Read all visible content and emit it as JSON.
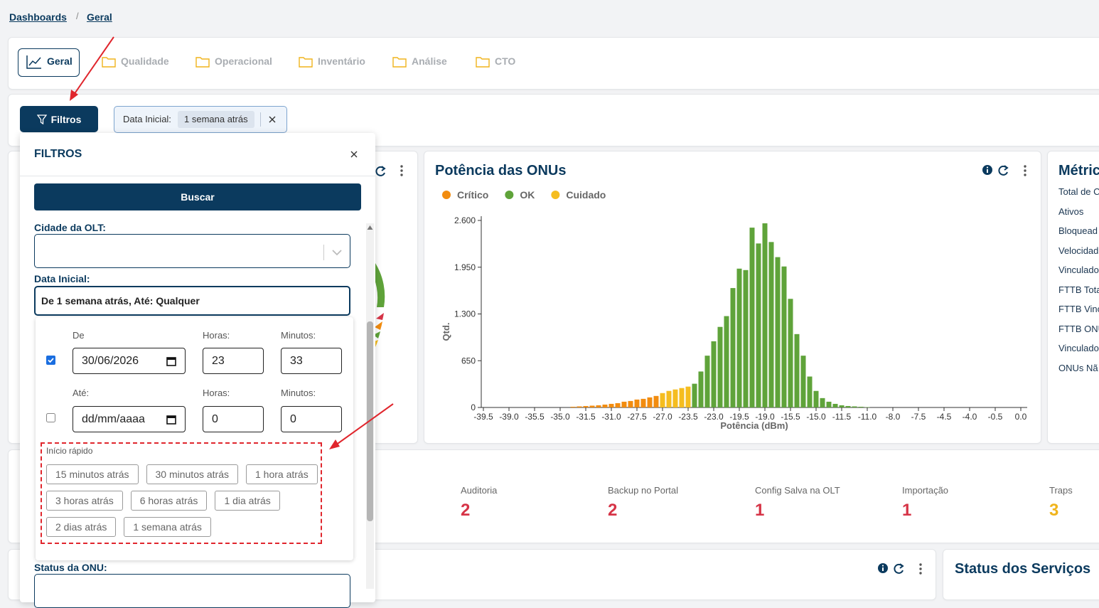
{
  "breadcrumb": {
    "items": [
      "Dashboards",
      "Geral"
    ],
    "separator": "/"
  },
  "tabs": [
    "Geral",
    "Qualidade",
    "Operacional",
    "Inventário",
    "Análise",
    "CTO"
  ],
  "filter_button": "Filtros",
  "active_filter": {
    "label": "Data Inicial:",
    "value": "1 semana atrás"
  },
  "filter_panel": {
    "title": "FILTROS",
    "search_button": "Buscar",
    "city_label": "Cidade da OLT:",
    "start_date_label": "Data Inicial:",
    "start_date_value": "De 1 semana atrás, Até: Qualquer",
    "picker": {
      "from": {
        "label": "De",
        "date": "30/06/2026",
        "hours_label": "Horas:",
        "hours": "23",
        "minutes_label": "Minutos:",
        "minutes": "33"
      },
      "to": {
        "label": "Até:",
        "date": "dd/mm/aaaa",
        "hours_label": "Horas:",
        "hours": "0",
        "minutes_label": "Minutos:",
        "minutes": "0"
      },
      "quick_start_title": "Início rápido",
      "quick_start": [
        "15 minutos atrás",
        "30 minutos atrás",
        "1 hora atrás",
        "3 horas atrás",
        "6 horas atrás",
        "1 dia atrás",
        "2 dias atrás",
        "1 semana atrás"
      ]
    },
    "status_label": "Status da ONU:"
  },
  "chart_data": {
    "type": "bar",
    "title": "Potência das ONUs",
    "xlabel": "Potência (dBm)",
    "ylabel": "Qtd.",
    "ylim": [
      0,
      2600
    ],
    "yticks": [
      0,
      650,
      {
        "value": 1300,
        "label": "1.300"
      },
      {
        "value": 1950,
        "label": "1.950"
      },
      {
        "value": 2600,
        "label": "2.600"
      }
    ],
    "categories": [
      "-39.5",
      null,
      null,
      null,
      "-39.0",
      null,
      null,
      null,
      "-35.5",
      null,
      null,
      null,
      "-35.0",
      null,
      null,
      null,
      "-31.5",
      null,
      null,
      null,
      "-31.0",
      null,
      null,
      null,
      "-27.5",
      null,
      null,
      null,
      "-27.0",
      null,
      null,
      null,
      "-23.5",
      null,
      null,
      null,
      "-23.0",
      null,
      null,
      null,
      "-19.5",
      null,
      null,
      null,
      "-19.0",
      null,
      null,
      null,
      "-15.5",
      null,
      null,
      null,
      "-15.0",
      null,
      null,
      null,
      "-11.5",
      null,
      null,
      null,
      "-11.0",
      null,
      null,
      null,
      "-8.0",
      null,
      null,
      null,
      "-7.5",
      null,
      null,
      null,
      "-4.5",
      null,
      null,
      null,
      "-4.0",
      null,
      null,
      null,
      "-0.5",
      null,
      null,
      null,
      "0.0"
    ],
    "series": [
      {
        "name": "Crítico",
        "color": "#f28c0f",
        "values": [
          null,
          null,
          null,
          null,
          null,
          null,
          null,
          null,
          null,
          null,
          null,
          null,
          null,
          null,
          10,
          15,
          20,
          25,
          30,
          40,
          50,
          60,
          80,
          90,
          110,
          120,
          140,
          160,
          null,
          null,
          null,
          null,
          null,
          null,
          null,
          null,
          null,
          null,
          null,
          null,
          null,
          null,
          null,
          null,
          null,
          null,
          null,
          null,
          null,
          null,
          null,
          null,
          null,
          null,
          null,
          null,
          null,
          null,
          null,
          null,
          null,
          null,
          null,
          null,
          null,
          null,
          null,
          null,
          null,
          null,
          null,
          null,
          null,
          null,
          null,
          null,
          null,
          null,
          null,
          null,
          null,
          null,
          null,
          null,
          null
        ]
      },
      {
        "name": "OK",
        "color": "#5fa33a",
        "values": [
          null,
          null,
          null,
          null,
          null,
          null,
          null,
          null,
          null,
          null,
          null,
          null,
          null,
          null,
          null,
          null,
          null,
          null,
          null,
          null,
          null,
          null,
          null,
          null,
          null,
          null,
          null,
          null,
          null,
          null,
          null,
          null,
          null,
          330,
          500,
          720,
          920,
          1120,
          1270,
          1660,
          1930,
          1910,
          2500,
          2280,
          2560,
          2300,
          2090,
          1960,
          1510,
          1020,
          720,
          430,
          230,
          130,
          80,
          50,
          30,
          20,
          15,
          10,
          5,
          null,
          null,
          null,
          null,
          null,
          null,
          null,
          null,
          null,
          null,
          null,
          null,
          null,
          null,
          null,
          null,
          null,
          null,
          null,
          null,
          null,
          null,
          null,
          null
        ]
      },
      {
        "name": "Cuidado",
        "color": "#f5bd1f",
        "values": [
          null,
          null,
          null,
          null,
          null,
          null,
          null,
          null,
          null,
          null,
          null,
          null,
          null,
          null,
          null,
          null,
          null,
          null,
          null,
          null,
          null,
          null,
          null,
          null,
          null,
          null,
          null,
          null,
          200,
          230,
          250,
          270,
          290,
          null,
          null,
          null,
          null,
          null,
          null,
          null,
          null,
          null,
          null,
          null,
          null,
          null,
          null,
          null,
          null,
          null,
          null,
          null,
          null,
          null,
          null,
          null,
          null,
          null,
          null,
          null,
          null,
          null,
          null,
          null,
          null,
          null,
          null,
          null,
          null,
          null,
          null,
          null,
          null,
          null,
          null,
          null,
          null,
          null,
          null,
          null,
          null,
          null,
          null,
          null,
          null
        ]
      }
    ]
  },
  "metrics": {
    "title": "Métric",
    "items": [
      "Total de C",
      "Ativos",
      "Bloquead",
      "Velocidad",
      "Vinculado",
      "FTTB Tota",
      "FTTB Vinc",
      "FTTB ONU",
      "Vinculado",
      "ONUs Nã"
    ]
  },
  "events": [
    {
      "label": "Auditoria",
      "value": 2,
      "color": "#d63447"
    },
    {
      "label": "Backup no Portal",
      "value": 2,
      "color": "#d63447"
    },
    {
      "label": "Config Salva na OLT",
      "value": 1,
      "color": "#d63447"
    },
    {
      "label": "Importação",
      "value": 1,
      "color": "#d63447"
    },
    {
      "label": "Traps",
      "value": 3,
      "color": "#f0b41c"
    }
  ],
  "services_title": "Status dos Serviços"
}
